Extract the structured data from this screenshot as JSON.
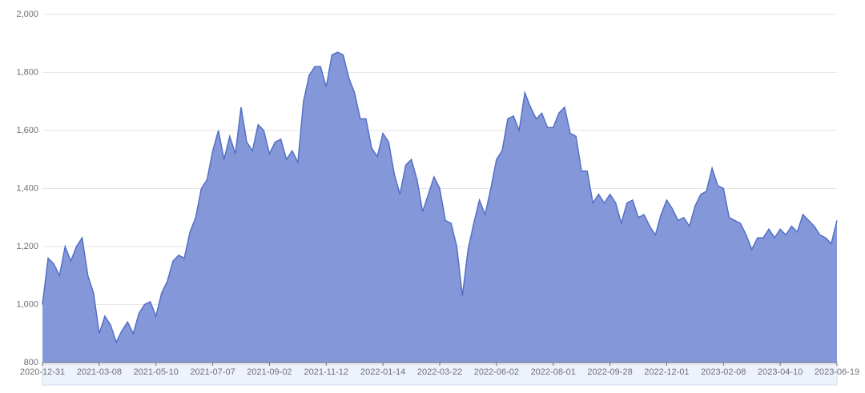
{
  "chart_data": {
    "type": "area",
    "categories": [
      "2020-12-31",
      null,
      null,
      null,
      null,
      null,
      null,
      null,
      null,
      null,
      "2021-03-08",
      null,
      null,
      null,
      null,
      null,
      null,
      null,
      null,
      null,
      "2021-05-10",
      null,
      null,
      null,
      null,
      null,
      null,
      null,
      null,
      null,
      "2021-07-07",
      null,
      null,
      null,
      null,
      null,
      null,
      null,
      null,
      null,
      "2021-09-02",
      null,
      null,
      null,
      null,
      null,
      null,
      null,
      null,
      null,
      "2021-11-12",
      null,
      null,
      null,
      null,
      null,
      null,
      null,
      null,
      null,
      "2022-01-14",
      null,
      null,
      null,
      null,
      null,
      null,
      null,
      null,
      null,
      "2022-03-22",
      null,
      null,
      null,
      null,
      null,
      null,
      null,
      null,
      null,
      "2022-06-02",
      null,
      null,
      null,
      null,
      null,
      null,
      null,
      null,
      null,
      "2022-08-01",
      null,
      null,
      null,
      null,
      null,
      null,
      null,
      null,
      null,
      "2022-09-28",
      null,
      null,
      null,
      null,
      null,
      null,
      null,
      null,
      null,
      "2022-12-01",
      null,
      null,
      null,
      null,
      null,
      null,
      null,
      null,
      null,
      "2023-02-08",
      null,
      null,
      null,
      null,
      null,
      null,
      null,
      null,
      null,
      "2023-04-10",
      null,
      null,
      null,
      null,
      null,
      null,
      null,
      null,
      null,
      "2023-06-19"
    ],
    "values": [
      1000,
      1160,
      1140,
      1100,
      1200,
      1150,
      1200,
      1230,
      1100,
      1040,
      900,
      960,
      930,
      870,
      910,
      940,
      900,
      970,
      1000,
      1010,
      960,
      1040,
      1080,
      1150,
      1170,
      1160,
      1250,
      1300,
      1400,
      1430,
      1530,
      1600,
      1500,
      1580,
      1520,
      1680,
      1560,
      1530,
      1620,
      1600,
      1520,
      1560,
      1570,
      1500,
      1530,
      1490,
      1700,
      1790,
      1820,
      1820,
      1750,
      1860,
      1870,
      1860,
      1780,
      1730,
      1640,
      1640,
      1540,
      1510,
      1590,
      1560,
      1450,
      1380,
      1480,
      1500,
      1430,
      1320,
      1380,
      1440,
      1400,
      1290,
      1280,
      1200,
      1030,
      1190,
      1280,
      1360,
      1310,
      1400,
      1500,
      1530,
      1640,
      1650,
      1600,
      1730,
      1680,
      1640,
      1660,
      1610,
      1610,
      1660,
      1680,
      1590,
      1580,
      1460,
      1460,
      1350,
      1380,
      1350,
      1380,
      1350,
      1280,
      1350,
      1360,
      1300,
      1310,
      1270,
      1240,
      1310,
      1360,
      1330,
      1290,
      1300,
      1270,
      1340,
      1380,
      1390,
      1470,
      1410,
      1400,
      1300,
      1290,
      1280,
      1240,
      1190,
      1230,
      1230,
      1260,
      1230,
      1260,
      1240,
      1270,
      1250,
      1310,
      1290,
      1270,
      1240,
      1230,
      1210,
      1290
    ],
    "color": "#5470c6",
    "fill": "#8497d9",
    "ylim": [
      800,
      2000
    ],
    "yticks": [
      800,
      {
        "value": 1000,
        "label": "1,000"
      },
      {
        "value": 1200,
        "label": "1,200"
      },
      {
        "value": 1400,
        "label": "1,400"
      },
      {
        "value": 1600,
        "label": "1,600"
      },
      {
        "value": 1800,
        "label": "1,800"
      },
      {
        "value": 2000,
        "label": "2,000"
      }
    ],
    "grid": true
  }
}
